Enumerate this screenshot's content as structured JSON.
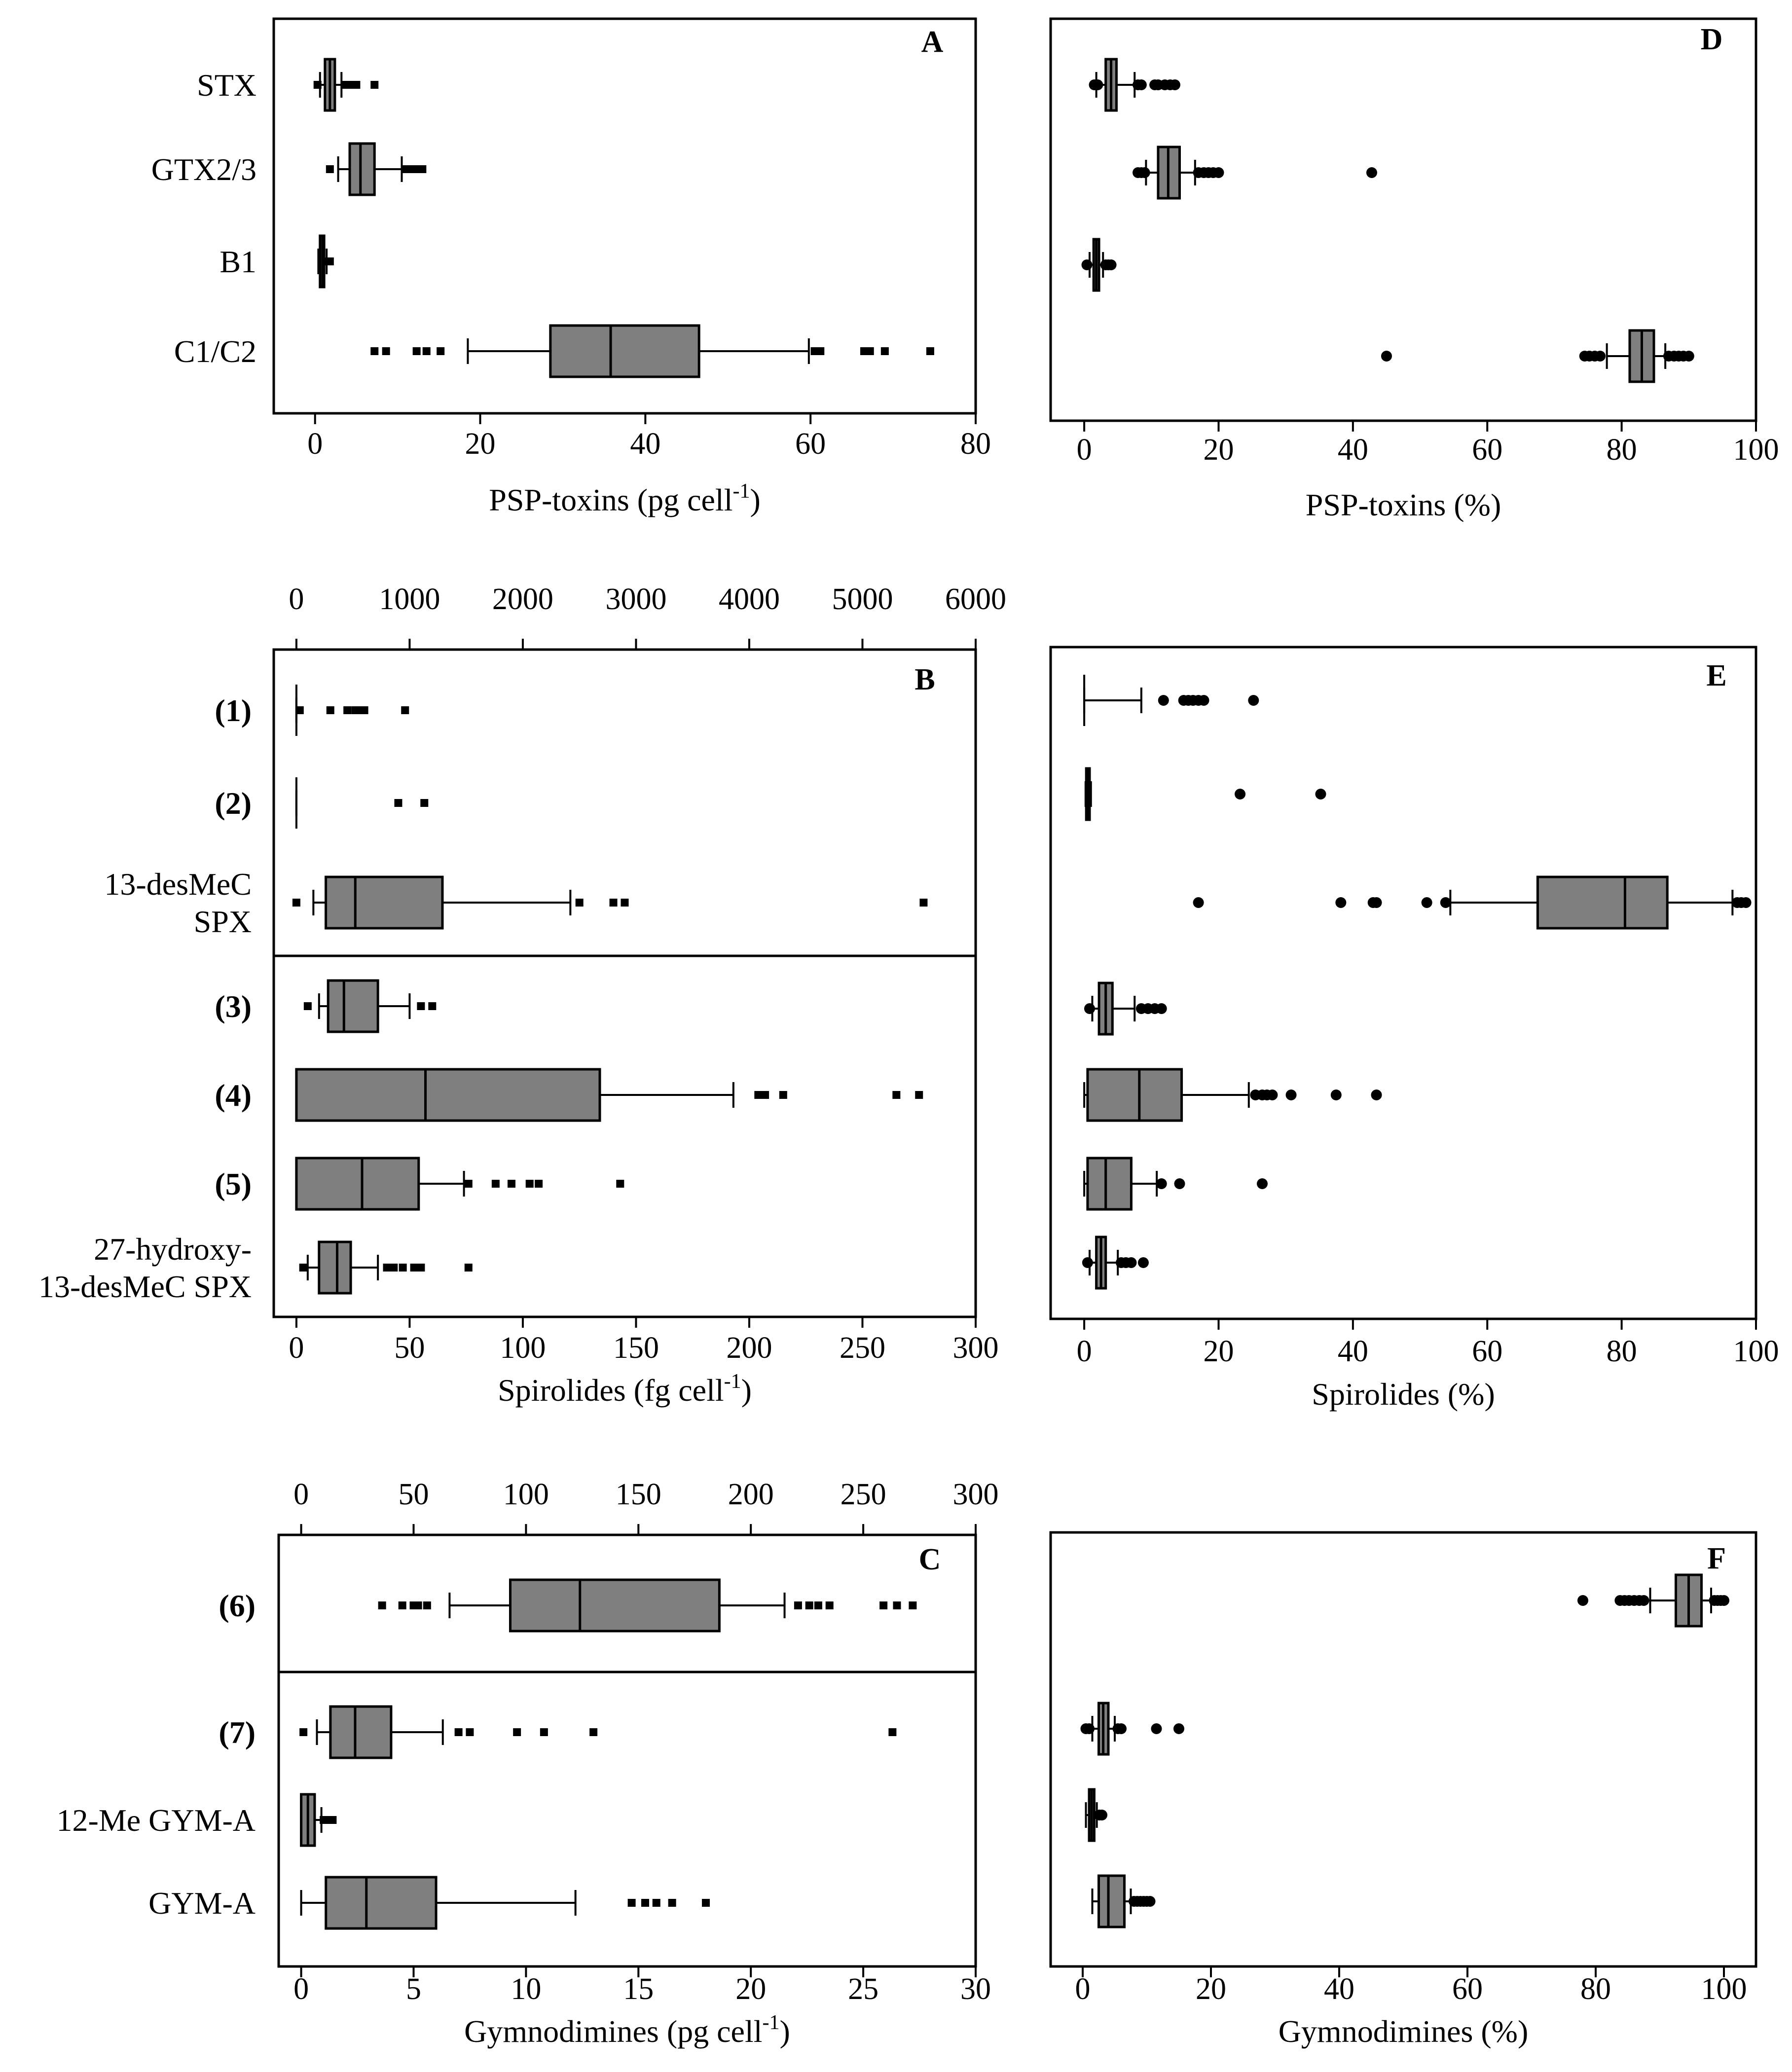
{
  "colors": {
    "box": "#7f7f7f",
    "stroke": "#000000"
  },
  "chart_data": [
    {
      "panel": "A",
      "type": "boxplot",
      "xlabel": "PSP-toxins (pg cell-1)",
      "xlabel_main": "PSP-toxins (pg cell",
      "xlabel_sup": "-1",
      "xlabel_end": ")",
      "xlim": [
        -5,
        80
      ],
      "xticks": [
        0,
        20,
        40,
        60,
        80
      ],
      "categories": [
        "STX",
        "GTX2/3",
        "B1",
        "C1/C2"
      ],
      "series": [
        {
          "name": "STX",
          "q1": 1.2,
          "median": 1.8,
          "q3": 2.4,
          "whisker_low": 0.6,
          "whisker_high": 3.2,
          "outliers": [
            0.3,
            3.6,
            4.2,
            5.0,
            7.2
          ]
        },
        {
          "name": "GTX2/3",
          "q1": 4.2,
          "median": 5.5,
          "q3": 7.2,
          "whisker_low": 2.8,
          "whisker_high": 10.5,
          "outliers": [
            1.8,
            11.0,
            11.8,
            12.5,
            13.0
          ]
        },
        {
          "name": "B1",
          "q1": 0.6,
          "median": 0.9,
          "q3": 1.1,
          "whisker_low": 0.4,
          "whisker_high": 1.4,
          "outliers": [
            1.6,
            1.8
          ]
        },
        {
          "name": "C1/C2",
          "q1": 28.5,
          "median": 35.8,
          "q3": 46.5,
          "whisker_low": 18.5,
          "whisker_high": 59.8,
          "outliers": [
            7.2,
            8.6,
            12.3,
            13.5,
            15.2,
            60.5,
            61.2,
            66.5,
            67.2,
            69.0,
            74.5
          ]
        }
      ]
    },
    {
      "panel": "D",
      "type": "boxplot",
      "xlabel": "PSP-toxins (%)",
      "xlim": [
        -5,
        100
      ],
      "xticks": [
        0,
        20,
        40,
        60,
        80,
        100
      ],
      "categories": [
        "STX",
        "GTX2/3",
        "B1",
        "C1/C2"
      ],
      "series": [
        {
          "name": "STX",
          "q1": 3.2,
          "median": 4.0,
          "q3": 4.8,
          "whisker_low": 1.8,
          "whisker_high": 7.5,
          "outliers": [
            1.5,
            2.0,
            8.0,
            8.5,
            10.5,
            11.0,
            12.0,
            12.8,
            13.5
          ]
        },
        {
          "name": "GTX2/3",
          "q1": 11.0,
          "median": 12.5,
          "q3": 14.2,
          "whisker_low": 9.2,
          "whisker_high": 16.5,
          "outliers": [
            8.0,
            8.5,
            9.0,
            17.0,
            17.8,
            18.5,
            19.2,
            20.0,
            42.8
          ]
        },
        {
          "name": "B1",
          "q1": 1.4,
          "median": 1.8,
          "q3": 2.2,
          "whisker_low": 0.8,
          "whisker_high": 2.8,
          "outliers": [
            0.4,
            3.2,
            3.6,
            4.0
          ]
        },
        {
          "name": "C1/C2",
          "q1": 81.2,
          "median": 83.0,
          "q3": 84.8,
          "whisker_low": 77.8,
          "whisker_high": 86.5,
          "outliers": [
            45.0,
            74.5,
            75.2,
            76.0,
            76.8,
            87.0,
            87.8,
            88.5,
            89.2,
            90.0
          ]
        }
      ]
    },
    {
      "panel": "B",
      "type": "boxplot",
      "xlabel": "Spirolides (fg cell-1)",
      "xlabel_main": "Spirolides (fg cell",
      "xlabel_sup": "-1",
      "xlabel_end": ")",
      "xlim": [
        -10,
        300
      ],
      "xticks": [
        0,
        50,
        100,
        150,
        200,
        250,
        300
      ],
      "top_axis": {
        "xlim": [
          -200,
          6000
        ],
        "xticks": [
          0,
          1000,
          2000,
          3000,
          4000,
          5000,
          6000
        ],
        "applies_to": [
          "(1)",
          "(2)",
          "13-desMeC SPX"
        ]
      },
      "categories": [
        "(1)",
        "(2)",
        "13-desMeC SPX",
        "(3)",
        "(4)",
        "(5)",
        "27-hydroxy-13-desMeC SPX"
      ],
      "category_lines": [
        [
          "(1)"
        ],
        [
          "(2)"
        ],
        [
          "13-desMeC",
          "SPX"
        ],
        [
          "(3)"
        ],
        [
          "(4)"
        ],
        [
          "(5)"
        ],
        [
          "27-hydroxy-",
          "13-desMeC SPX"
        ]
      ],
      "series": [
        {
          "name": "(1)",
          "axis": "top",
          "q1": 0,
          "median": 0,
          "q3": 0,
          "whisker_low": 0,
          "whisker_high": 0,
          "outliers": [
            30,
            300,
            450,
            520,
            560,
            600,
            960
          ]
        },
        {
          "name": "(2)",
          "axis": "top",
          "q1": 0,
          "median": 0,
          "q3": 0,
          "whisker_low": 0,
          "whisker_high": 0,
          "outliers": [
            900,
            1130
          ]
        },
        {
          "name": "13-desMeC SPX",
          "axis": "top",
          "q1": 260,
          "median": 520,
          "q3": 1290,
          "whisker_low": 150,
          "whisker_high": 2420,
          "outliers": [
            0,
            2500,
            2800,
            2900,
            5540
          ]
        },
        {
          "name": "(3)",
          "axis": "bottom",
          "q1": 14,
          "median": 21,
          "q3": 36,
          "whisker_low": 10,
          "whisker_high": 50,
          "outliers": [
            5,
            55,
            60
          ]
        },
        {
          "name": "(4)",
          "axis": "bottom",
          "q1": 0,
          "median": 57,
          "q3": 134,
          "whisker_low": 0,
          "whisker_high": 193,
          "outliers": [
            204,
            207,
            215,
            265,
            275
          ]
        },
        {
          "name": "(5)",
          "axis": "bottom",
          "q1": 0,
          "median": 29,
          "q3": 54,
          "whisker_low": 0,
          "whisker_high": 74,
          "outliers": [
            76,
            88,
            95,
            103,
            107,
            143
          ]
        },
        {
          "name": "27-hydroxy-13-desMeC SPX",
          "axis": "bottom",
          "q1": 10,
          "median": 18,
          "q3": 24,
          "whisker_low": 5,
          "whisker_high": 36,
          "outliers": [
            3,
            40,
            43,
            47,
            52,
            55,
            76
          ]
        }
      ]
    },
    {
      "panel": "E",
      "type": "boxplot",
      "xlabel": "Spirolides (%)",
      "xlim": [
        -5,
        100
      ],
      "xticks": [
        0,
        20,
        40,
        60,
        80,
        100
      ],
      "categories": [
        "(1)",
        "(2)",
        "13-desMeC SPX",
        "(3)",
        "(4)",
        "(5)",
        "27-hydroxy-13-desMeC SPX"
      ],
      "series": [
        {
          "name": "(1)",
          "q1": 0,
          "median": 0,
          "q3": 0,
          "whisker_low": 0,
          "whisker_high": 8.5,
          "outliers": [
            11.8,
            14.8,
            15.5,
            16.2,
            17.0,
            17.8,
            25.2
          ]
        },
        {
          "name": "(2)",
          "q1": 0.3,
          "median": 0.5,
          "q3": 0.8,
          "whisker_low": 0.2,
          "whisker_high": 1.0,
          "outliers": [
            23.2,
            35.2
          ]
        },
        {
          "name": "13-desMeC SPX",
          "q1": 67.5,
          "median": 80.5,
          "q3": 86.8,
          "whisker_low": 54.5,
          "whisker_high": 96.5,
          "outliers": [
            17.0,
            38.2,
            43.0,
            43.5,
            51.0,
            53.8,
            97.2,
            97.8,
            98.5
          ]
        },
        {
          "name": "(3)",
          "q1": 2.2,
          "median": 3.2,
          "q3": 4.2,
          "whisker_low": 1.2,
          "whisker_high": 7.5,
          "outliers": [
            0.8,
            8.5,
            9.5,
            10.5,
            11.5
          ]
        },
        {
          "name": "(4)",
          "q1": 0.5,
          "median": 8.2,
          "q3": 14.5,
          "whisker_low": 0,
          "whisker_high": 24.5,
          "outliers": [
            25.5,
            26.5,
            27.2,
            28.0,
            30.8,
            37.5,
            43.5
          ]
        },
        {
          "name": "(5)",
          "q1": 0.5,
          "median": 3.2,
          "q3": 7.0,
          "whisker_low": 0,
          "whisker_high": 10.8,
          "outliers": [
            11.5,
            14.2,
            26.5
          ]
        },
        {
          "name": "27-hydroxy-13-desMeC SPX",
          "q1": 1.8,
          "median": 2.5,
          "q3": 3.2,
          "whisker_low": 0.8,
          "whisker_high": 5.0,
          "outliers": [
            0.5,
            5.5,
            6.2,
            7.0,
            8.8
          ]
        }
      ]
    },
    {
      "panel": "C",
      "type": "boxplot",
      "xlabel": "Gymnodimines (pg cell-1)",
      "xlabel_main": "Gymnodimines (pg cell",
      "xlabel_sup": "-1",
      "xlabel_end": ")",
      "xlim": [
        -1,
        30
      ],
      "xticks": [
        0,
        5,
        10,
        15,
        20,
        25,
        30
      ],
      "top_axis": {
        "xlim": [
          -10,
          300
        ],
        "xticks": [
          0,
          50,
          100,
          150,
          200,
          250,
          300
        ],
        "applies_to": [
          "(6)"
        ]
      },
      "categories": [
        "(6)",
        "(7)",
        "12-Me GYM-A",
        "GYM-A"
      ],
      "series": [
        {
          "name": "(6)",
          "axis": "top",
          "q1": 93,
          "median": 124,
          "q3": 186,
          "whisker_low": 66,
          "whisker_high": 215,
          "outliers": [
            36,
            45,
            50,
            52,
            56,
            221,
            226,
            230,
            235,
            259,
            265,
            272
          ]
        },
        {
          "name": "(7)",
          "axis": "bottom",
          "q1": 1.3,
          "median": 2.4,
          "q3": 4.0,
          "whisker_low": 0.7,
          "whisker_high": 6.3,
          "outliers": [
            0.1,
            7.0,
            7.5,
            9.6,
            10.8,
            13.0,
            26.3
          ]
        },
        {
          "name": "12-Me GYM-A",
          "axis": "bottom",
          "q1": 0,
          "median": 0.3,
          "q3": 0.6,
          "whisker_low": 0,
          "whisker_high": 0.9,
          "outliers": [
            1.0,
            1.2,
            1.4
          ]
        },
        {
          "name": "GYM-A",
          "axis": "bottom",
          "q1": 1.1,
          "median": 2.9,
          "q3": 6.0,
          "whisker_low": 0,
          "whisker_high": 12.2,
          "outliers": [
            14.7,
            15.3,
            15.8,
            16.5,
            18.0
          ]
        }
      ]
    },
    {
      "panel": "F",
      "type": "boxplot",
      "xlabel": "Gymnodimines (%)",
      "xlim": [
        -5,
        105
      ],
      "xticks": [
        0,
        20,
        40,
        60,
        80,
        100
      ],
      "categories": [
        "(6)",
        "(7)",
        "12-Me GYM-A",
        "GYM-A"
      ],
      "series": [
        {
          "name": "(6)",
          "q1": 92.5,
          "median": 94.5,
          "q3": 96.5,
          "whisker_low": 88.5,
          "whisker_high": 98.0,
          "outliers": [
            78.0,
            83.8,
            84.5,
            85.2,
            86.0,
            86.8,
            87.5,
            98.5,
            99.0,
            99.5,
            100.0
          ]
        },
        {
          "name": "(7)",
          "q1": 2.5,
          "median": 3.2,
          "q3": 4.0,
          "whisker_low": 1.5,
          "whisker_high": 5.0,
          "outliers": [
            0.5,
            1.0,
            5.5,
            6.0,
            11.5,
            15.0
          ]
        },
        {
          "name": "12-Me GYM-A",
          "q1": 1.0,
          "median": 1.4,
          "q3": 1.8,
          "whisker_low": 0.5,
          "whisker_high": 2.2,
          "outliers": [
            2.6,
            3.0
          ]
        },
        {
          "name": "GYM-A",
          "q1": 2.5,
          "median": 4.0,
          "q3": 6.5,
          "whisker_low": 1.5,
          "whisker_high": 7.5,
          "outliers": [
            8.0,
            8.5,
            9.0,
            9.5,
            10.0,
            10.5
          ]
        }
      ]
    }
  ]
}
